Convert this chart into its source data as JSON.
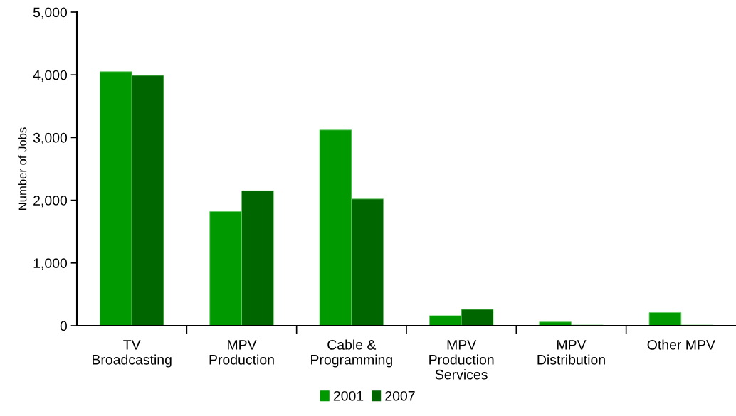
{
  "chart_data": {
    "type": "bar",
    "ylabel": "Number of Jobs",
    "categories": [
      "TV\nBroadcasting",
      "MPV\nProduction",
      "Cable &\nProgramming",
      "MPV\nProduction\nServices",
      "MPV\nDistribution",
      "Other MPV"
    ],
    "series": [
      {
        "name": "2001",
        "color": "#009900",
        "values": [
          4050,
          1820,
          3120,
          160,
          60,
          210
        ]
      },
      {
        "name": "2007",
        "color": "#006600",
        "values": [
          3990,
          2150,
          2020,
          260,
          10,
          10
        ]
      }
    ],
    "ylim": [
      0,
      5000
    ],
    "yticks": [
      {
        "value": 0,
        "label": "0"
      },
      {
        "value": 1000,
        "label": "1,000"
      },
      {
        "value": 2000,
        "label": "2,000"
      },
      {
        "value": 3000,
        "label": "3,000"
      },
      {
        "value": 4000,
        "label": "4,000"
      },
      {
        "value": 5000,
        "label": "5,000"
      }
    ],
    "grid": false,
    "legend": "bottom"
  }
}
